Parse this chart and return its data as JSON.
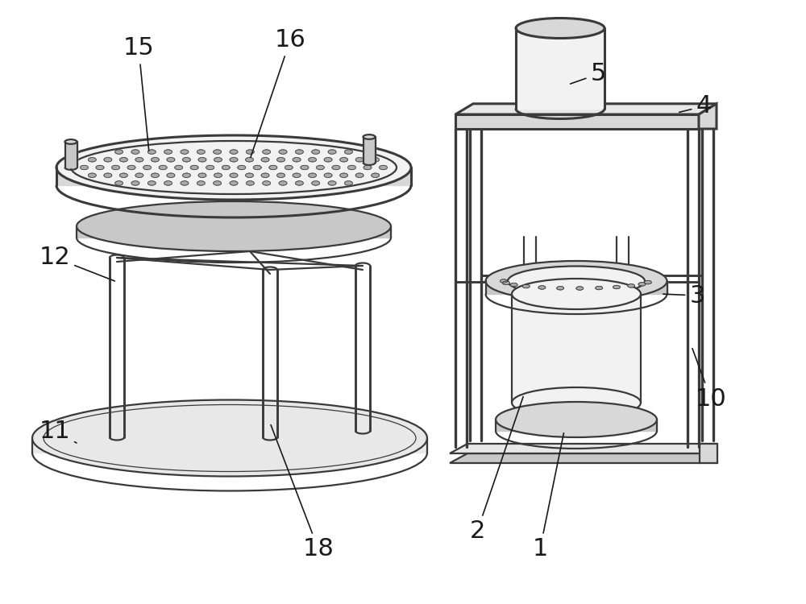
{
  "bg_color": "#ffffff",
  "lc": "#3a3a3a",
  "lw": 1.6,
  "lw_thick": 2.2,
  "lw_thin": 0.9,
  "fs": 22,
  "label_color": "#1a1a1a",
  "shade1": "#e8e8e8",
  "shade2": "#d8d8d8",
  "shade3": "#f2f2f2",
  "shade_dark": "#c8c8c8"
}
